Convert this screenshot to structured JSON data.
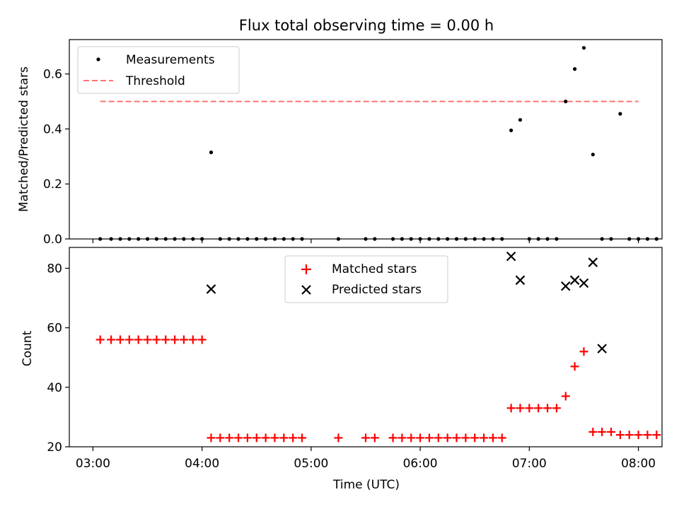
{
  "chart_data": [
    {
      "type": "scatter",
      "title": "Flux total observing time = 0.00 h",
      "xlabel": "",
      "ylabel": "Matched/Predicted stars",
      "ylim": [
        0,
        0.725
      ],
      "yticks": [
        0.0,
        0.2,
        0.4,
        0.6
      ],
      "ytick_labels": [
        "0.0",
        "0.2",
        "0.4",
        "0.6"
      ],
      "xlim": [
        "02:47",
        "08:13"
      ],
      "grid": false,
      "legend": "top-left",
      "series": [
        {
          "name": "Measurements",
          "marker": "dot",
          "color": "#000000",
          "x": [
            "03:04",
            "03:10",
            "03:15",
            "03:20",
            "03:25",
            "03:30",
            "03:35",
            "03:40",
            "03:45",
            "03:50",
            "03:55",
            "04:00",
            "04:05",
            "04:10",
            "04:15",
            "04:20",
            "04:25",
            "04:30",
            "04:35",
            "04:40",
            "04:45",
            "04:50",
            "04:55",
            "05:15",
            "05:30",
            "05:35",
            "05:45",
            "05:50",
            "05:55",
            "06:00",
            "06:05",
            "06:10",
            "06:15",
            "06:20",
            "06:25",
            "06:30",
            "06:35",
            "06:40",
            "06:45",
            "06:50",
            "06:55",
            "07:00",
            "07:05",
            "07:10",
            "07:15",
            "07:20",
            "07:25",
            "07:30",
            "07:35",
            "07:40",
            "07:45",
            "07:50",
            "07:55",
            "08:00",
            "08:05",
            "08:10"
          ],
          "y": [
            0,
            0,
            0,
            0,
            0,
            0,
            0,
            0,
            0,
            0,
            0,
            0,
            0.315,
            0,
            0,
            0,
            0,
            0,
            0,
            0,
            0,
            0,
            0,
            0,
            0,
            0,
            0,
            0,
            0,
            0,
            0,
            0,
            0,
            0,
            0,
            0,
            0,
            0,
            0,
            0.395,
            0.433,
            0,
            0,
            0,
            0,
            0.5,
            0.618,
            0.695,
            0.307,
            0,
            0,
            0.455,
            0,
            0,
            0,
            0
          ]
        },
        {
          "name": "Threshold",
          "style": "dashed",
          "color": "#ff7373",
          "x": [
            "03:04",
            "08:00"
          ],
          "y": [
            0.5,
            0.5
          ]
        }
      ]
    },
    {
      "type": "scatter",
      "title": "",
      "xlabel": "Time (UTC)",
      "ylabel": "Count",
      "ylim": [
        20,
        87
      ],
      "yticks": [
        20,
        40,
        60,
        80
      ],
      "ytick_labels": [
        "20",
        "40",
        "60",
        "80"
      ],
      "xlim": [
        "02:47",
        "08:13"
      ],
      "xticks": [
        "03:00",
        "04:00",
        "05:00",
        "06:00",
        "07:00",
        "08:00"
      ],
      "xtick_labels": [
        "03:00",
        "04:00",
        "05:00",
        "06:00",
        "07:00",
        "08:00"
      ],
      "grid": false,
      "legend": "top-center",
      "series": [
        {
          "name": "Matched stars",
          "marker": "plus",
          "color": "#ff0000",
          "x": [
            "03:04",
            "03:10",
            "03:15",
            "03:20",
            "03:25",
            "03:30",
            "03:35",
            "03:40",
            "03:45",
            "03:50",
            "03:55",
            "04:00",
            "04:05",
            "04:10",
            "04:15",
            "04:20",
            "04:25",
            "04:30",
            "04:35",
            "04:40",
            "04:45",
            "04:50",
            "04:55",
            "05:15",
            "05:30",
            "05:35",
            "05:45",
            "05:50",
            "05:55",
            "06:00",
            "06:05",
            "06:10",
            "06:15",
            "06:20",
            "06:25",
            "06:30",
            "06:35",
            "06:40",
            "06:45",
            "06:50",
            "06:55",
            "07:00",
            "07:05",
            "07:10",
            "07:15",
            "07:20",
            "07:25",
            "07:30",
            "07:35",
            "07:40",
            "07:45",
            "07:50",
            "07:55",
            "08:00",
            "08:05",
            "08:10"
          ],
          "y": [
            56,
            56,
            56,
            56,
            56,
            56,
            56,
            56,
            56,
            56,
            56,
            56,
            23,
            23,
            23,
            23,
            23,
            23,
            23,
            23,
            23,
            23,
            23,
            23,
            23,
            23,
            23,
            23,
            23,
            23,
            23,
            23,
            23,
            23,
            23,
            23,
            23,
            23,
            23,
            33,
            33,
            33,
            33,
            33,
            33,
            37,
            47,
            52,
            25,
            25,
            25,
            24,
            24,
            24,
            24,
            24
          ]
        },
        {
          "name": "Predicted stars",
          "marker": "x",
          "color": "#000000",
          "x": [
            "04:05",
            "06:50",
            "06:55",
            "07:20",
            "07:25",
            "07:30",
            "07:35",
            "07:40",
            "07:45",
            "07:50",
            "07:55"
          ],
          "y": [
            73,
            84,
            76,
            74,
            76,
            75,
            82,
            53,
            null,
            null,
            null
          ]
        }
      ]
    }
  ]
}
